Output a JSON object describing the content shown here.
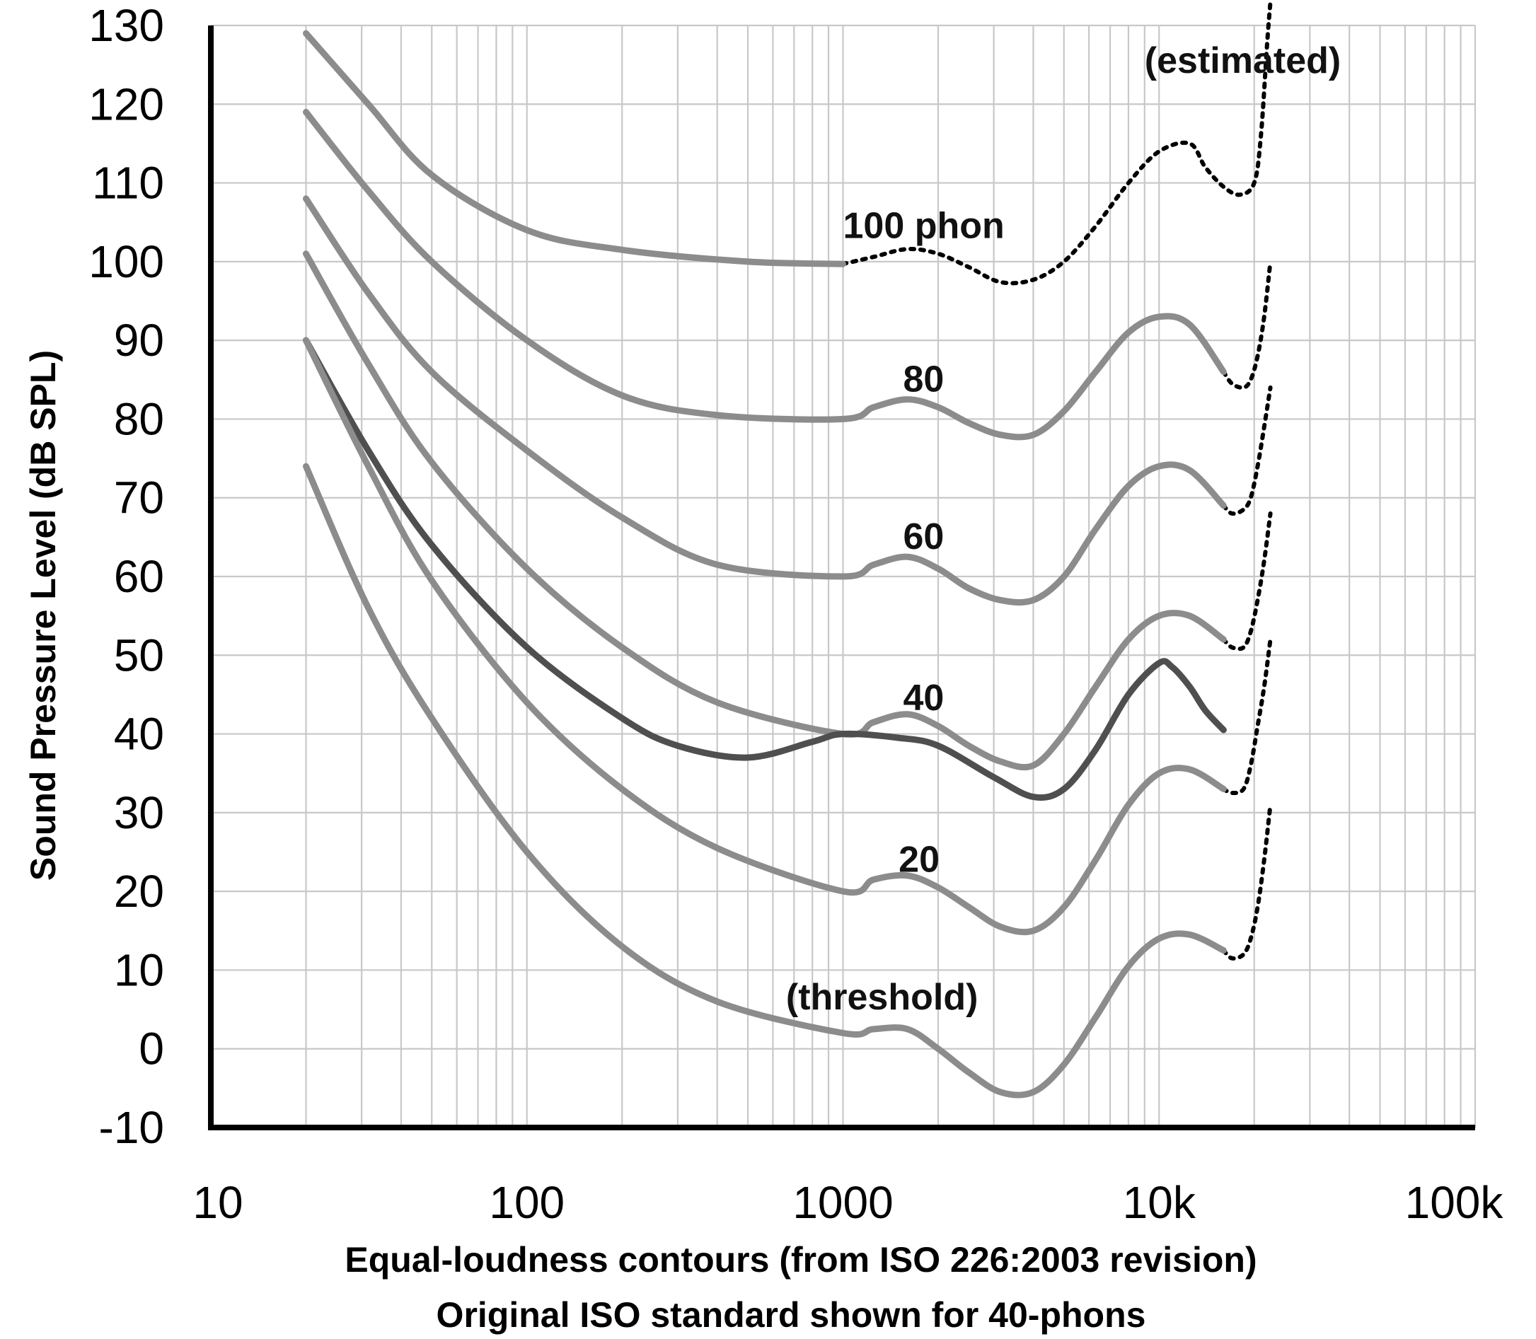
{
  "chart_data": {
    "type": "line",
    "title": "",
    "xlabel_line1": "Equal-loudness contours (from ISO 226:2003 revision)",
    "xlabel_line2": "Original ISO standard shown for 40-phons",
    "ylabel": "Sound Pressure Level (dB SPL)",
    "x_scale": "log",
    "xlim": [
      10,
      100000
    ],
    "ylim": [
      -10,
      130
    ],
    "grid": true,
    "x_ticks": [
      {
        "value": 10,
        "label": "10"
      },
      {
        "value": 100,
        "label": "100"
      },
      {
        "value": 1000,
        "label": "1000"
      },
      {
        "value": 10000,
        "label": "10k"
      },
      {
        "value": 100000,
        "label": "100k"
      }
    ],
    "y_ticks": [
      {
        "value": 130,
        "label": "130"
      },
      {
        "value": 120,
        "label": "120"
      },
      {
        "value": 110,
        "label": "110"
      },
      {
        "value": 100,
        "label": "100"
      },
      {
        "value": 90,
        "label": "90"
      },
      {
        "value": 80,
        "label": "80"
      },
      {
        "value": 70,
        "label": "70"
      },
      {
        "value": 60,
        "label": "60"
      },
      {
        "value": 50,
        "label": "50"
      },
      {
        "value": 40,
        "label": "40"
      },
      {
        "value": 30,
        "label": "30"
      },
      {
        "value": 20,
        "label": "20"
      },
      {
        "value": 10,
        "label": "10"
      },
      {
        "value": 0,
        "label": "0"
      },
      {
        "value": -10,
        "label": "-10"
      }
    ],
    "colors": {
      "iso_2003": "#8c8c8c",
      "original_40_phon": "#4f4f4f",
      "estimated": "#000000",
      "grid": "#c8c8c8"
    },
    "series": [
      {
        "id": "100-phon",
        "style": "solid",
        "color_key": "iso_2003",
        "points": [
          [
            20,
            129
          ],
          [
            31.5,
            120
          ],
          [
            50,
            111
          ],
          [
            100,
            104
          ],
          [
            200,
            101.5
          ],
          [
            500,
            100
          ],
          [
            1000,
            99.7
          ]
        ]
      },
      {
        "id": "100-phon-estimated",
        "style": "dotted",
        "color_key": "estimated",
        "points": [
          [
            1000,
            99.7
          ],
          [
            1250,
            100.6
          ],
          [
            1600,
            101.6
          ],
          [
            2000,
            101
          ],
          [
            2500,
            99.3
          ],
          [
            3150,
            97.4
          ],
          [
            4000,
            97.7
          ],
          [
            5000,
            100
          ],
          [
            6300,
            104.5
          ],
          [
            8000,
            110
          ],
          [
            10000,
            114
          ],
          [
            12500,
            115
          ],
          [
            14000,
            112
          ],
          [
            16000,
            109.5
          ],
          [
            18000,
            108.5
          ],
          [
            20000,
            110
          ],
          [
            21000,
            116
          ],
          [
            22000,
            128
          ],
          [
            22500,
            133
          ]
        ]
      },
      {
        "id": "80-phon",
        "style": "solid",
        "color_key": "iso_2003",
        "points": [
          [
            20,
            119
          ],
          [
            31.5,
            109
          ],
          [
            50,
            100
          ],
          [
            100,
            90
          ],
          [
            200,
            83
          ],
          [
            400,
            80.5
          ],
          [
            1000,
            80
          ],
          [
            1250,
            81.5
          ],
          [
            1600,
            82.5
          ],
          [
            2000,
            81.5
          ],
          [
            2500,
            79.5
          ],
          [
            3150,
            78
          ],
          [
            4000,
            78
          ],
          [
            5000,
            81
          ],
          [
            6300,
            86
          ],
          [
            8000,
            91
          ],
          [
            10000,
            93
          ],
          [
            12500,
            92
          ],
          [
            16000,
            86
          ]
        ]
      },
      {
        "id": "80-phon-estimated",
        "style": "dotted",
        "color_key": "estimated",
        "points": [
          [
            16000,
            86
          ],
          [
            17000,
            84.5
          ],
          [
            18500,
            84
          ],
          [
            19500,
            85
          ],
          [
            20500,
            88
          ],
          [
            21500,
            93
          ],
          [
            22500,
            100
          ]
        ]
      },
      {
        "id": "60-phon",
        "style": "solid",
        "color_key": "iso_2003",
        "points": [
          [
            20,
            108
          ],
          [
            31.5,
            96
          ],
          [
            50,
            86
          ],
          [
            100,
            76
          ],
          [
            200,
            67.5
          ],
          [
            400,
            61.5
          ],
          [
            1000,
            60
          ],
          [
            1250,
            61.5
          ],
          [
            1600,
            62.5
          ],
          [
            2000,
            61
          ],
          [
            2500,
            58.5
          ],
          [
            3150,
            57
          ],
          [
            4000,
            57
          ],
          [
            5000,
            60
          ],
          [
            6300,
            66
          ],
          [
            8000,
            71.5
          ],
          [
            10000,
            74
          ],
          [
            12500,
            73.5
          ],
          [
            16000,
            69
          ]
        ]
      },
      {
        "id": "60-phon-estimated",
        "style": "dotted",
        "color_key": "estimated",
        "points": [
          [
            16000,
            69
          ],
          [
            17000,
            68
          ],
          [
            18500,
            68.5
          ],
          [
            19500,
            70
          ],
          [
            20500,
            74
          ],
          [
            21500,
            79
          ],
          [
            22500,
            84
          ]
        ]
      },
      {
        "id": "40-phon",
        "style": "solid",
        "color_key": "iso_2003",
        "points": [
          [
            20,
            101
          ],
          [
            31.5,
            87
          ],
          [
            50,
            74.5
          ],
          [
            100,
            61
          ],
          [
            200,
            51
          ],
          [
            400,
            44
          ],
          [
            1000,
            40
          ],
          [
            1250,
            41.5
          ],
          [
            1600,
            42.5
          ],
          [
            2000,
            41
          ],
          [
            2500,
            38.5
          ],
          [
            3150,
            36.5
          ],
          [
            4000,
            36
          ],
          [
            5000,
            40
          ],
          [
            6300,
            46
          ],
          [
            8000,
            52
          ],
          [
            10000,
            55
          ],
          [
            12500,
            55
          ],
          [
            16000,
            52
          ]
        ]
      },
      {
        "id": "40-phon-estimated",
        "style": "dotted",
        "color_key": "estimated",
        "points": [
          [
            16000,
            52
          ],
          [
            17000,
            51
          ],
          [
            18500,
            51
          ],
          [
            19500,
            53
          ],
          [
            20500,
            57
          ],
          [
            21500,
            62
          ],
          [
            22500,
            68
          ]
        ]
      },
      {
        "id": "40-phon-original-iso",
        "style": "solid",
        "color_key": "original_40_phon",
        "points": [
          [
            20,
            90
          ],
          [
            31.5,
            76
          ],
          [
            50,
            64
          ],
          [
            100,
            51
          ],
          [
            200,
            42
          ],
          [
            300,
            38.5
          ],
          [
            500,
            37
          ],
          [
            800,
            39
          ],
          [
            1000,
            40
          ],
          [
            1500,
            39.5
          ],
          [
            2000,
            38.5
          ],
          [
            3000,
            34.5
          ],
          [
            4000,
            32
          ],
          [
            5000,
            33
          ],
          [
            6300,
            38
          ],
          [
            8000,
            45
          ],
          [
            10000,
            49
          ],
          [
            11000,
            48.5
          ],
          [
            12500,
            46
          ],
          [
            14000,
            43
          ],
          [
            16000,
            40.5
          ]
        ]
      },
      {
        "id": "20-phon",
        "style": "solid",
        "color_key": "iso_2003",
        "points": [
          [
            20,
            90
          ],
          [
            31.5,
            74
          ],
          [
            50,
            59.5
          ],
          [
            100,
            44
          ],
          [
            200,
            33
          ],
          [
            400,
            25.5
          ],
          [
            1000,
            20
          ],
          [
            1250,
            21.5
          ],
          [
            1600,
            22
          ],
          [
            2000,
            20.5
          ],
          [
            2500,
            18
          ],
          [
            3150,
            15.5
          ],
          [
            4000,
            15
          ],
          [
            5000,
            18
          ],
          [
            6300,
            24
          ],
          [
            8000,
            31
          ],
          [
            10000,
            35
          ],
          [
            12500,
            35.5
          ],
          [
            16000,
            33
          ]
        ]
      },
      {
        "id": "20-phon-estimated",
        "style": "dotted",
        "color_key": "estimated",
        "points": [
          [
            16000,
            33
          ],
          [
            17000,
            32.5
          ],
          [
            18500,
            33
          ],
          [
            19500,
            36
          ],
          [
            20500,
            41
          ],
          [
            21500,
            46
          ],
          [
            22500,
            52
          ]
        ]
      },
      {
        "id": "threshold",
        "style": "solid",
        "color_key": "iso_2003",
        "points": [
          [
            20,
            74
          ],
          [
            31.5,
            56
          ],
          [
            50,
            42
          ],
          [
            100,
            25
          ],
          [
            200,
            13
          ],
          [
            400,
            6
          ],
          [
            1000,
            2
          ],
          [
            1250,
            2.5
          ],
          [
            1600,
            2.5
          ],
          [
            2000,
            0
          ],
          [
            2500,
            -3
          ],
          [
            3150,
            -5.5
          ],
          [
            4000,
            -5.5
          ],
          [
            5000,
            -2
          ],
          [
            6300,
            4
          ],
          [
            8000,
            10.5
          ],
          [
            10000,
            14
          ],
          [
            12500,
            14.5
          ],
          [
            16000,
            12.5
          ]
        ]
      },
      {
        "id": "threshold-estimated",
        "style": "dotted",
        "color_key": "estimated",
        "points": [
          [
            16000,
            12.5
          ],
          [
            17000,
            11.5
          ],
          [
            18500,
            12
          ],
          [
            19500,
            14
          ],
          [
            20500,
            18
          ],
          [
            21500,
            24
          ],
          [
            22500,
            31
          ]
        ]
      }
    ],
    "annotations": [
      {
        "text": "(estimated)",
        "x": 9000,
        "y": 124
      },
      {
        "text": "100 phon",
        "x": 1000,
        "y": 103
      },
      {
        "text": "80",
        "x": 1550,
        "y": 83.5
      },
      {
        "text": "60",
        "x": 1550,
        "y": 63.5
      },
      {
        "text": "40",
        "x": 1550,
        "y": 43
      },
      {
        "text": "20",
        "x": 1500,
        "y": 22.5
      },
      {
        "text": "(threshold)",
        "x": 660,
        "y": 5
      }
    ]
  }
}
